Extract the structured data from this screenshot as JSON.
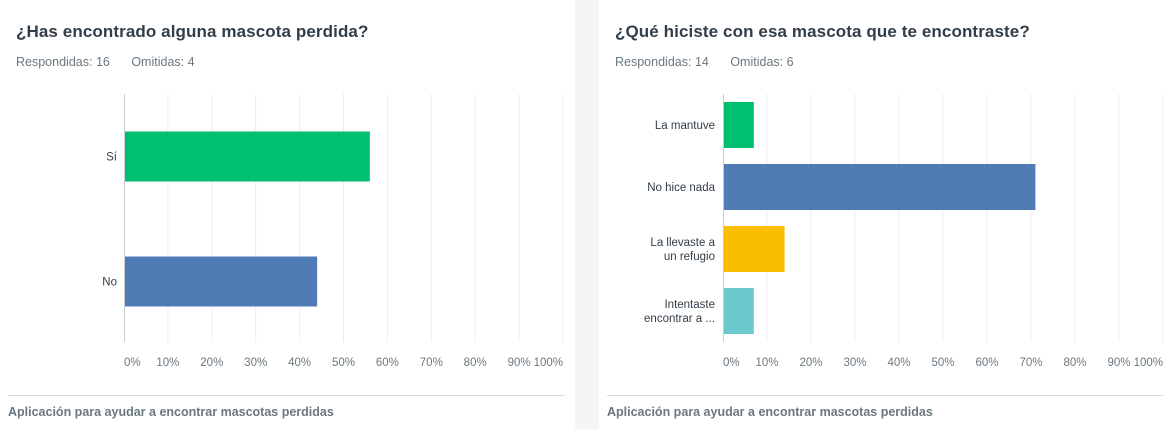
{
  "panels": [
    {
      "title": "¿Has encontrado alguna mascota perdida?",
      "answered_label": "Respondidas:",
      "answered": "16",
      "skipped_label": "Omitidas:",
      "skipped": "4",
      "footer": "Aplicación para ayudar a encontrar mascotas perdidas"
    },
    {
      "title": "¿Qué hiciste con esa mascota que te encontraste?",
      "answered_label": "Respondidas:",
      "answered": "14",
      "skipped_label": "Omitidas:",
      "skipped": "6",
      "footer": "Aplicación para ayudar a encontrar mascotas perdidas"
    }
  ],
  "chart_data": [
    {
      "type": "bar",
      "orientation": "horizontal",
      "categories": [
        [
          "Sí"
        ],
        [
          "No"
        ]
      ],
      "values": [
        56,
        44
      ],
      "colors": [
        "#00bf6f",
        "#507cb6"
      ],
      "xlim": [
        0,
        100
      ],
      "xticks": [
        "0%",
        "10%",
        "20%",
        "30%",
        "40%",
        "50%",
        "60%",
        "70%",
        "80%",
        "90%",
        "100%"
      ],
      "grid": true
    },
    {
      "type": "bar",
      "orientation": "horizontal",
      "categories": [
        [
          "La mantuve"
        ],
        [
          "No hice nada"
        ],
        [
          "La llevaste a",
          "un refugio"
        ],
        [
          "Intentaste",
          "encontrar a ..."
        ]
      ],
      "values": [
        7,
        71,
        14,
        7
      ],
      "colors": [
        "#00bf6f",
        "#507cb6",
        "#f9be00",
        "#6bc8cd"
      ],
      "xlim": [
        0,
        100
      ],
      "xticks": [
        "0%",
        "10%",
        "20%",
        "30%",
        "40%",
        "50%",
        "60%",
        "70%",
        "80%",
        "90%",
        "100%"
      ],
      "grid": true
    }
  ]
}
